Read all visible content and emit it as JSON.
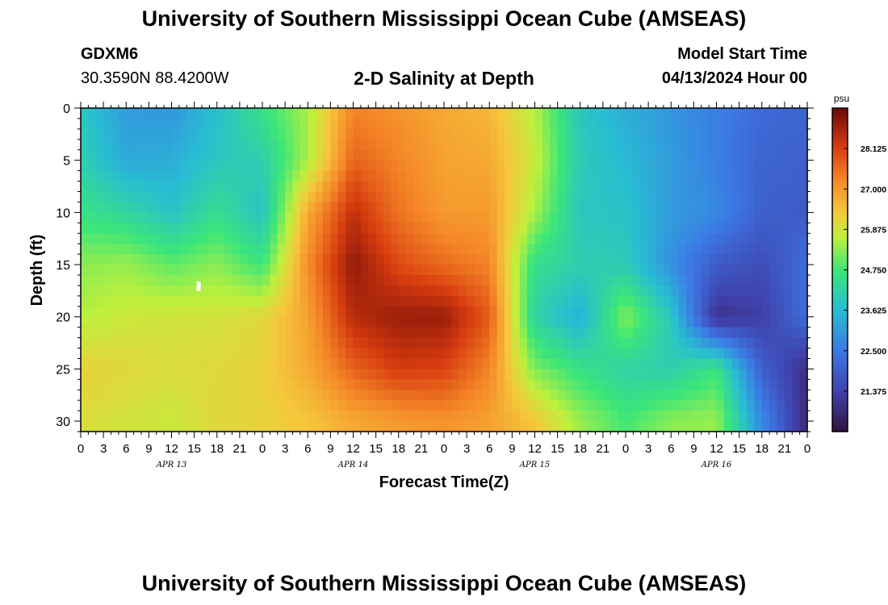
{
  "header": {
    "title": "University of Southern Mississippi Ocean Cube (AMSEAS)",
    "station": "GDXM6",
    "coords": "30.3590N  88.4200W",
    "subtitle": "2-D Salinity at Depth",
    "start_label": "Model Start Time",
    "start_time": "04/13/2024 Hour 00"
  },
  "footer": {
    "title": "University of Southern Mississippi Ocean Cube (AMSEAS)"
  },
  "chart_data": {
    "type": "heatmap",
    "title": "2-D Salinity at Depth",
    "xlabel": "Forecast Time(Z)",
    "ylabel": "Depth (ft)",
    "x_tick_labels": [
      "0",
      "3",
      "6",
      "9",
      "12",
      "15",
      "18",
      "21",
      "0",
      "3",
      "6",
      "9",
      "12",
      "15",
      "18",
      "21",
      "0",
      "3",
      "6",
      "9",
      "12",
      "15",
      "18",
      "21",
      "0",
      "3",
      "6",
      "9",
      "12",
      "15",
      "18",
      "21",
      "0"
    ],
    "date_labels": [
      {
        "hour": 12,
        "label": "APR 13"
      },
      {
        "hour": 36,
        "label": "APR 14"
      },
      {
        "hour": 60,
        "label": "APR 15"
      },
      {
        "hour": 84,
        "label": "APR 16"
      }
    ],
    "xlim": [
      0,
      96
    ],
    "ylim": [
      0,
      31
    ],
    "y_ticks": [
      0,
      5,
      10,
      15,
      20,
      25,
      30
    ],
    "colorbar": {
      "unit": "psu",
      "range": [
        20.25,
        29.25
      ],
      "ticks": [
        "28.125",
        "27.000",
        "25.875",
        "24.750",
        "23.625",
        "22.500",
        "21.375"
      ],
      "tick_values": [
        28.125,
        27.0,
        25.875,
        24.75,
        23.625,
        22.5,
        21.375
      ]
    },
    "depth_levels_ft": [
      0,
      5,
      10,
      15,
      20,
      25,
      30
    ],
    "time_hours": [
      0,
      6,
      12,
      18,
      24,
      30,
      36,
      42,
      48,
      54,
      60,
      66,
      72,
      78,
      84,
      90,
      96
    ],
    "salinity": [
      [
        23.9,
        23.1,
        23.0,
        23.7,
        24.6,
        25.5,
        27.3,
        27.1,
        26.8,
        26.6,
        25.6,
        23.9,
        23.4,
        23.0,
        22.6,
        22.2,
        22.1
      ],
      [
        24.1,
        23.3,
        23.4,
        23.9,
        24.1,
        25.5,
        27.7,
        27.3,
        26.9,
        26.8,
        25.8,
        24.0,
        23.6,
        23.1,
        22.6,
        22.1,
        22.0
      ],
      [
        24.6,
        24.3,
        23.8,
        24.5,
        23.8,
        26.8,
        28.4,
        27.5,
        27.0,
        27.0,
        25.5,
        23.9,
        23.8,
        23.1,
        22.8,
        22.0,
        21.9
      ],
      [
        25.3,
        25.4,
        25.0,
        25.3,
        24.7,
        27.2,
        28.9,
        28.0,
        27.6,
        27.3,
        24.5,
        24.1,
        24.0,
        22.9,
        21.9,
        21.6,
        22.3
      ],
      [
        25.6,
        25.8,
        25.9,
        25.9,
        26.1,
        26.9,
        28.5,
        28.8,
        28.8,
        27.8,
        24.2,
        23.4,
        25.3,
        23.9,
        21.0,
        21.3,
        22.3
      ],
      [
        26.2,
        26.1,
        26.0,
        26.1,
        26.2,
        26.8,
        27.7,
        28.2,
        28.1,
        27.3,
        25.2,
        24.6,
        24.2,
        24.1,
        24.7,
        22.0,
        20.9
      ],
      [
        26.0,
        25.9,
        25.8,
        26.1,
        26.2,
        26.4,
        26.8,
        27.0,
        27.1,
        26.9,
        26.4,
        25.4,
        24.8,
        25.3,
        25.4,
        22.8,
        20.8
      ]
    ],
    "marker": {
      "hour": 15,
      "depth": 17
    }
  }
}
